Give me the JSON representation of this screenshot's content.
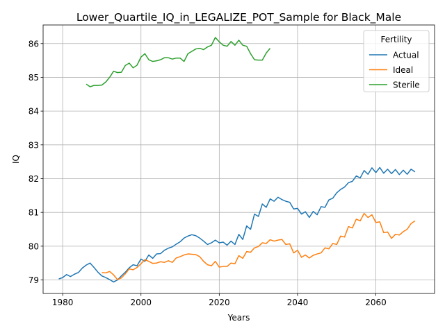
{
  "chart_data": {
    "type": "line",
    "title": "Lower_Quartile_IQ_in_LEGALIZE_POT_Sample for Black_Male",
    "xlabel": "Years",
    "ylabel": "IQ",
    "xlim": [
      1975,
      2075
    ],
    "ylim": [
      78.6,
      86.55
    ],
    "xticks": [
      1980,
      2000,
      2020,
      2040,
      2060
    ],
    "yticks": [
      79,
      80,
      81,
      82,
      83,
      84,
      85,
      86
    ],
    "grid": true,
    "legend": {
      "title": "Fertility",
      "placement": "top-right"
    },
    "series": [
      {
        "name": "Actual",
        "color": "#1f77b4",
        "x": [
          1979,
          1980,
          1981,
          1982,
          1983,
          1984,
          1985,
          1986,
          1987,
          1988,
          1989,
          1990,
          1991,
          1992,
          1993,
          1994,
          1995,
          1996,
          1997,
          1998,
          1999,
          2000,
          2001,
          2002,
          2003,
          2004,
          2005,
          2006,
          2007,
          2008,
          2009,
          2010,
          2011,
          2012,
          2013,
          2014,
          2015,
          2016,
          2017,
          2018,
          2019,
          2020,
          2021,
          2022,
          2023,
          2024,
          2025,
          2026,
          2027,
          2028,
          2029,
          2030,
          2031,
          2032,
          2033,
          2034,
          2035,
          2036,
          2037,
          2038,
          2039,
          2040,
          2041,
          2042,
          2043,
          2044,
          2045,
          2046,
          2047,
          2048,
          2049,
          2050,
          2051,
          2052,
          2053,
          2054,
          2055,
          2056,
          2057,
          2058,
          2059,
          2060,
          2061,
          2062,
          2063,
          2064,
          2065,
          2066,
          2067,
          2068,
          2069,
          2070
        ],
        "values": [
          79.03,
          79.07,
          79.16,
          79.1,
          79.17,
          79.22,
          79.35,
          79.44,
          79.5,
          79.37,
          79.23,
          79.12,
          79.07,
          79.01,
          78.94,
          79.0,
          79.12,
          79.23,
          79.36,
          79.45,
          79.42,
          79.62,
          79.55,
          79.74,
          79.64,
          79.77,
          79.78,
          79.88,
          79.94,
          79.98,
          80.06,
          80.13,
          80.24,
          80.3,
          80.34,
          80.31,
          80.24,
          80.15,
          80.05,
          80.1,
          80.18,
          80.1,
          80.12,
          80.03,
          80.15,
          80.05,
          80.35,
          80.2,
          80.6,
          80.5,
          80.95,
          80.88,
          81.25,
          81.15,
          81.4,
          81.33,
          81.45,
          81.38,
          81.33,
          81.3,
          81.1,
          81.12,
          80.95,
          81.02,
          80.85,
          81.03,
          80.93,
          81.17,
          81.15,
          81.37,
          81.42,
          81.58,
          81.68,
          81.75,
          81.88,
          81.92,
          82.08,
          82.02,
          82.24,
          82.13,
          82.32,
          82.18,
          82.33,
          82.16,
          82.28,
          82.15,
          82.27,
          82.12,
          82.25,
          82.13,
          82.28,
          82.2
        ]
      },
      {
        "name": "Ideal",
        "color": "#ff7f0e",
        "x": [
          1990,
          1991,
          1992,
          1993,
          1994,
          1995,
          1996,
          1997,
          1998,
          1999,
          2000,
          2001,
          2002,
          2003,
          2004,
          2005,
          2006,
          2007,
          2008,
          2009,
          2010,
          2011,
          2012,
          2013,
          2014,
          2015,
          2016,
          2017,
          2018,
          2019,
          2020,
          2021,
          2022,
          2023,
          2024,
          2025,
          2026,
          2027,
          2028,
          2029,
          2030,
          2031,
          2032,
          2033,
          2034,
          2035,
          2036,
          2037,
          2038,
          2039,
          2040,
          2041,
          2042,
          2043,
          2044,
          2045,
          2046,
          2047,
          2048,
          2049,
          2050,
          2051,
          2052,
          2053,
          2054,
          2055,
          2056,
          2057,
          2058,
          2059,
          2060,
          2061,
          2062,
          2063,
          2064,
          2065,
          2066,
          2067,
          2068,
          2069,
          2070
        ],
        "values": [
          79.22,
          79.21,
          79.25,
          79.15,
          79.01,
          79.06,
          79.18,
          79.33,
          79.3,
          79.37,
          79.48,
          79.6,
          79.55,
          79.49,
          79.5,
          79.54,
          79.52,
          79.57,
          79.52,
          79.65,
          79.69,
          79.74,
          79.77,
          79.76,
          79.75,
          79.69,
          79.55,
          79.45,
          79.42,
          79.55,
          79.38,
          79.4,
          79.4,
          79.5,
          79.48,
          79.72,
          79.64,
          79.84,
          79.82,
          79.95,
          79.99,
          80.1,
          80.08,
          80.19,
          80.15,
          80.18,
          80.2,
          80.05,
          80.07,
          79.8,
          79.88,
          79.67,
          79.74,
          79.65,
          79.73,
          79.77,
          79.8,
          79.95,
          79.92,
          80.08,
          80.05,
          80.3,
          80.27,
          80.58,
          80.54,
          80.8,
          80.75,
          80.97,
          80.85,
          80.93,
          80.7,
          80.72,
          80.4,
          80.42,
          80.23,
          80.35,
          80.33,
          80.43,
          80.5,
          80.67,
          80.75
        ]
      },
      {
        "name": "Sterile",
        "color": "#2ca02c",
        "x": [
          1986,
          1987,
          1988,
          1989,
          1990,
          1991,
          1992,
          1993,
          1994,
          1995,
          1996,
          1997,
          1998,
          1999,
          2000,
          2001,
          2002,
          2003,
          2004,
          2005,
          2006,
          2007,
          2008,
          2009,
          2010,
          2011,
          2012,
          2013,
          2014,
          2015,
          2016,
          2017,
          2018,
          2019,
          2020,
          2021,
          2022,
          2023,
          2024,
          2025,
          2026,
          2027,
          2028,
          2029,
          2030,
          2031,
          2032,
          2033
        ],
        "values": [
          84.8,
          84.72,
          84.76,
          84.76,
          84.77,
          84.86,
          85.0,
          85.18,
          85.14,
          85.15,
          85.35,
          85.42,
          85.28,
          85.36,
          85.6,
          85.7,
          85.52,
          85.47,
          85.49,
          85.52,
          85.58,
          85.58,
          85.54,
          85.57,
          85.57,
          85.47,
          85.7,
          85.77,
          85.84,
          85.86,
          85.82,
          85.9,
          85.95,
          86.18,
          86.05,
          85.95,
          85.92,
          86.06,
          85.95,
          86.1,
          85.95,
          85.92,
          85.7,
          85.52,
          85.51,
          85.51,
          85.72,
          85.86
        ]
      }
    ]
  }
}
